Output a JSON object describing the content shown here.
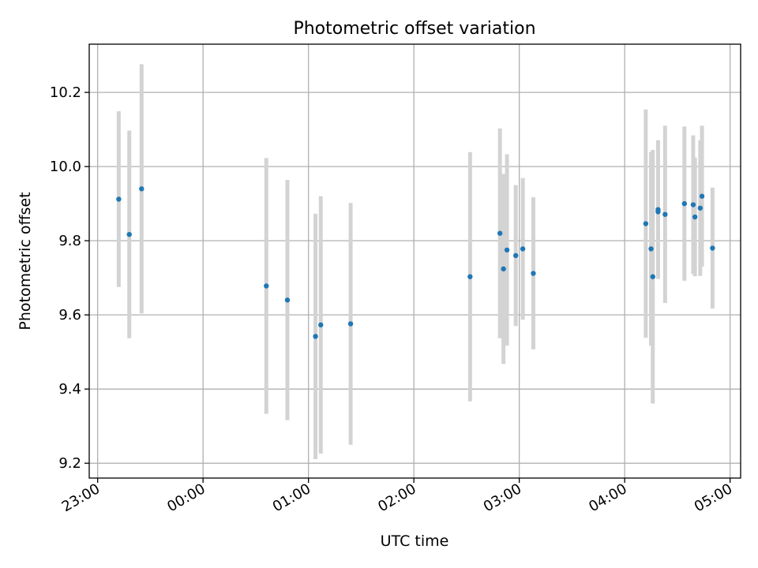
{
  "chart_data": {
    "type": "scatter",
    "title": "Photometric offset variation",
    "xlabel": "UTC time",
    "ylabel": "Photometric offset",
    "x_tick_labels": [
      "23:00",
      "00:00",
      "01:00",
      "02:00",
      "03:00",
      "04:00",
      "05:00"
    ],
    "x_ticks_hours": [
      23,
      24,
      25,
      26,
      27,
      28,
      29
    ],
    "y_tick_labels": [
      "9.2",
      "9.4",
      "9.6",
      "9.8",
      "10.0",
      "10.2"
    ],
    "y_ticks": [
      9.2,
      9.4,
      9.6,
      9.8,
      10.0,
      10.2
    ],
    "xlim_hours": [
      22.92,
      29.1
    ],
    "ylim": [
      9.16,
      10.33
    ],
    "grid": true,
    "marker_color": "#1f77b4",
    "errorbar_color": "#d3d3d3",
    "points": [
      {
        "t": "23:12",
        "y": 9.912,
        "err": 0.237
      },
      {
        "t": "23:18",
        "y": 9.817,
        "err": 0.28
      },
      {
        "t": "23:25",
        "y": 9.94,
        "err": 0.336
      },
      {
        "t": "00:36",
        "y": 9.678,
        "err": 0.345
      },
      {
        "t": "00:48",
        "y": 9.64,
        "err": 0.324
      },
      {
        "t": "01:04",
        "y": 9.542,
        "err": 0.331
      },
      {
        "t": "01:07",
        "y": 9.573,
        "err": 0.347
      },
      {
        "t": "01:24",
        "y": 9.576,
        "err": 0.326
      },
      {
        "t": "02:32",
        "y": 9.703,
        "err": 0.336
      },
      {
        "t": "02:49",
        "y": 9.82,
        "err": 0.283
      },
      {
        "t": "02:51",
        "y": 9.724,
        "err": 0.256
      },
      {
        "t": "02:53",
        "y": 9.775,
        "err": 0.258
      },
      {
        "t": "02:58",
        "y": 9.76,
        "err": 0.19
      },
      {
        "t": "03:02",
        "y": 9.778,
        "err": 0.191
      },
      {
        "t": "03:08",
        "y": 9.712,
        "err": 0.205
      },
      {
        "t": "04:12",
        "y": 9.846,
        "err": 0.308
      },
      {
        "t": "04:15",
        "y": 9.778,
        "err": 0.261
      },
      {
        "t": "04:16",
        "y": 9.703,
        "err": 0.342
      },
      {
        "t": "04:19",
        "y": 9.878,
        "err": 0.168
      },
      {
        "t": "04:19",
        "y": 9.884,
        "err": 0.187
      },
      {
        "t": "04:23",
        "y": 9.871,
        "err": 0.239
      },
      {
        "t": "04:34",
        "y": 9.9,
        "err": 0.208
      },
      {
        "t": "04:39",
        "y": 9.897,
        "err": 0.187
      },
      {
        "t": "04:40",
        "y": 9.864,
        "err": 0.16
      },
      {
        "t": "04:43",
        "y": 9.888,
        "err": 0.183
      },
      {
        "t": "04:44",
        "y": 9.92,
        "err": 0.19
      },
      {
        "t": "04:50",
        "y": 9.78,
        "err": 0.163
      }
    ]
  }
}
